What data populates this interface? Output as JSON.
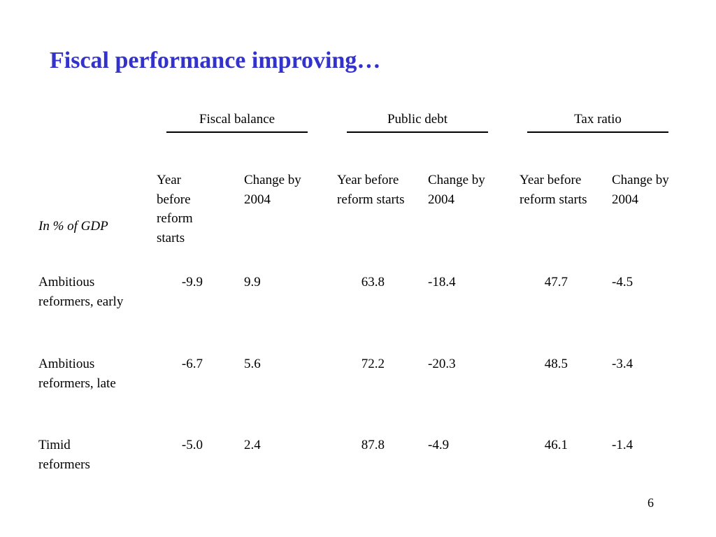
{
  "slide": {
    "title": "Fiscal performance improving…",
    "page_number": "6"
  },
  "table": {
    "unit_label": "In % of GDP",
    "groups": [
      {
        "label": "Fiscal balance"
      },
      {
        "label": "Public debt"
      },
      {
        "label": "Tax ratio"
      }
    ],
    "column_headers": [
      "Year before reform starts",
      "Change by 2004",
      "Year before reform starts",
      "Change by 2004",
      "Year before reform starts",
      "Change by 2004"
    ],
    "rows": [
      {
        "label": "Ambitious reformers, early",
        "values": [
          "-9.9",
          "9.9",
          "63.8",
          "-18.4",
          "47.7",
          "-4.5"
        ]
      },
      {
        "label": "Ambitious reformers, late",
        "values": [
          "-6.7",
          "5.6",
          "72.2",
          "-20.3",
          "48.5",
          "-3.4"
        ]
      },
      {
        "label": "Timid reformers",
        "values": [
          "-5.0",
          "2.4",
          "87.8",
          "-4.9",
          "46.1",
          "-1.4"
        ]
      }
    ]
  }
}
